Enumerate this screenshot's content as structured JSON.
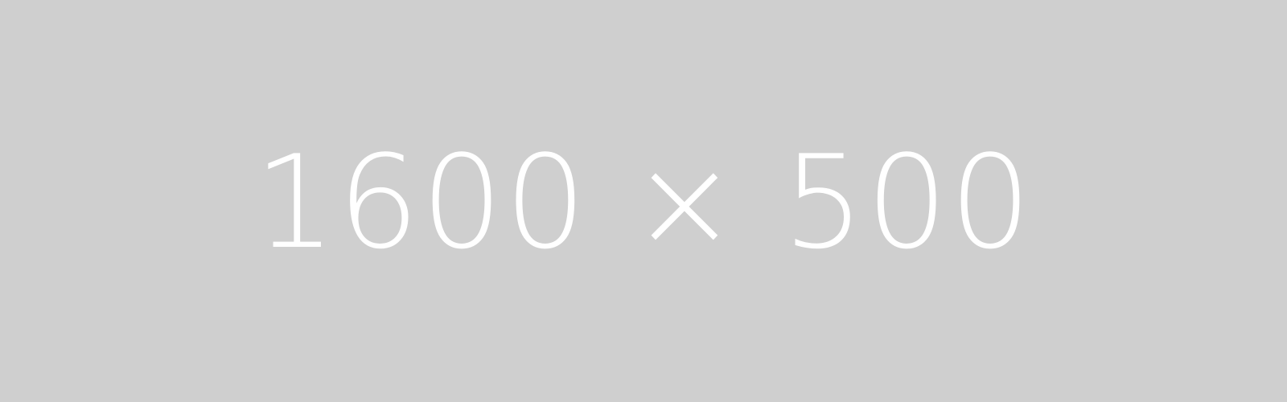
{
  "placeholder": {
    "label": "1600 × 500",
    "background_color": "#cfcfcf",
    "text_color": "#ffffff"
  }
}
